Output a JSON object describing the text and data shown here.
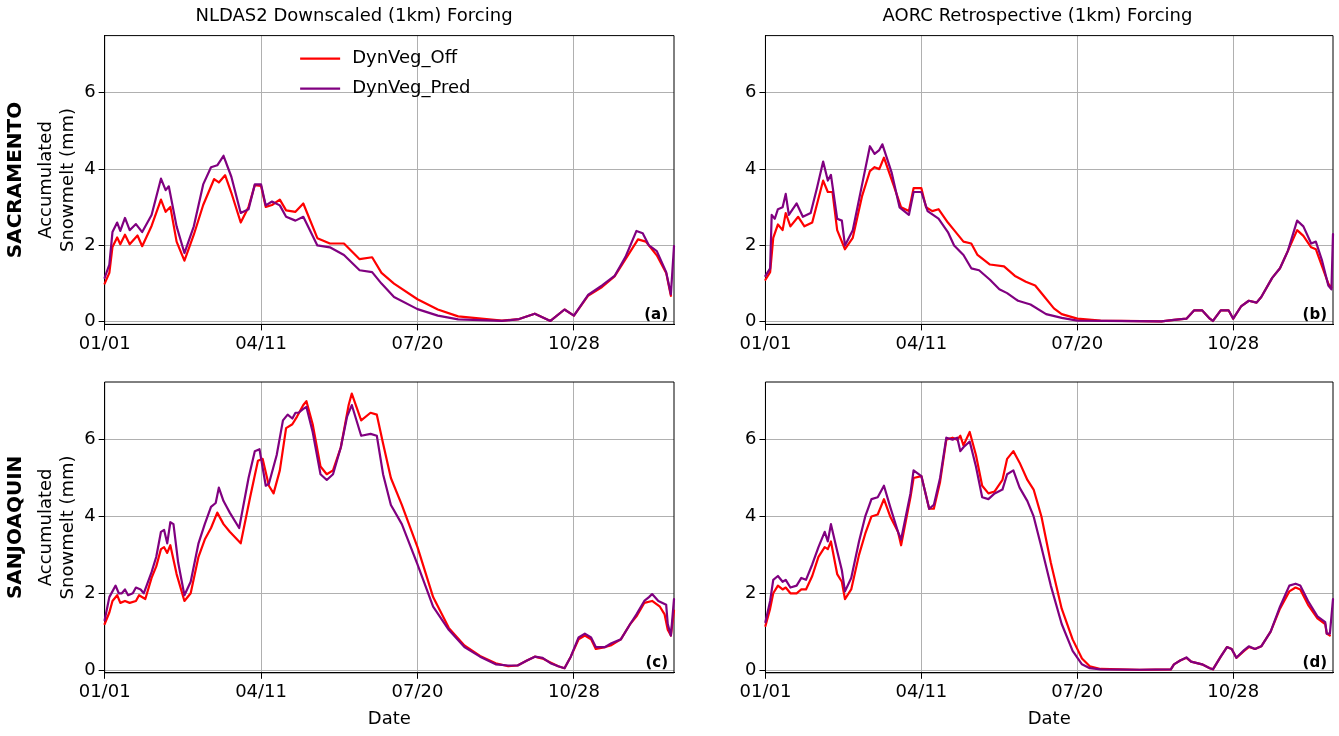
{
  "chart_data": [
    {
      "type": "line",
      "title": "NLDAS2 Downscaled (1km) Forcing",
      "ylabel": "Accumulated\nSnowmelt (mm)",
      "annotations": [
        "SACRAMENTO",
        "(a)"
      ],
      "legend": "top",
      "grid": true,
      "marker": "none",
      "line_style": "solid",
      "xlim": [
        "--01-01",
        "--12-31"
      ],
      "xticks": [
        {
          "value": "--01-01",
          "label": "01/01"
        },
        {
          "value": "--04-11",
          "label": "04/11"
        },
        {
          "value": "--07-20",
          "label": "07/20"
        },
        {
          "value": "--10-28",
          "label": "10/28"
        }
      ],
      "ylim": [
        -0.07,
        7.5
      ],
      "yticks": [
        0,
        2,
        4,
        6
      ],
      "series": [
        {
          "name": "DynVeg_Off",
          "color": "#ff0000",
          "x": [
            "--01-01",
            "--01-04",
            "--01-06",
            "--01-09",
            "--01-11",
            "--01-14",
            "--01-17",
            "--01-22",
            "--01-25",
            "--01-31",
            "--02-06",
            "--02-09",
            "--02-12",
            "--02-16",
            "--02-21",
            "--02-27",
            "--03-05",
            "--03-12",
            "--03-15",
            "--03-19",
            "--03-23",
            "--03-29",
            "--04-03",
            "--04-07",
            "--04-11",
            "--04-14",
            "--04-18",
            "--04-23",
            "--04-27",
            "--05-03",
            "--05-08",
            "--05-17",
            "--05-25",
            "--06-03",
            "--06-13",
            "--06-21",
            "--06-27",
            "--07-05",
            "--07-20",
            "--08-02",
            "--08-15",
            "--09-12",
            "--09-23",
            "--10-03",
            "--10-13",
            "--10-22",
            "--10-28",
            "--11-06",
            "--11-15",
            "--11-23",
            "--11-30",
            "--12-08",
            "--12-13",
            "--12-20",
            "--12-26",
            "--12-29"
          ],
          "values": [
            1.0,
            1.28,
            1.96,
            2.21,
            2.03,
            2.28,
            2.03,
            2.26,
            1.98,
            2.51,
            3.2,
            2.88,
            3.01,
            2.1,
            1.6,
            2.28,
            3.06,
            3.74,
            3.65,
            3.84,
            3.38,
            2.6,
            3.01,
            3.58,
            3.56,
            3.01,
            3.06,
            3.2,
            2.92,
            2.88,
            3.1,
            2.19,
            2.05,
            2.05,
            1.64,
            1.69,
            1.28,
            1.0,
            0.59,
            0.32,
            0.14,
            0.03,
            0.07,
            0.21,
            0.02,
            0.32,
            0.16,
            0.68,
            0.91,
            1.19,
            1.64,
            2.16,
            2.1,
            1.74,
            1.28,
            0.68
          ]
        },
        {
          "name": "DynVeg_Pred",
          "color": "#800080",
          "x": [
            "--01-01",
            "--01-04",
            "--01-06",
            "--01-09",
            "--01-11",
            "--01-14",
            "--01-17",
            "--01-21",
            "--01-25",
            "--01-31",
            "--02-06",
            "--02-09",
            "--02-11",
            "--02-16",
            "--02-21",
            "--02-27",
            "--03-05",
            "--03-10",
            "--03-14",
            "--03-18",
            "--03-23",
            "--03-29",
            "--04-03",
            "--04-07",
            "--04-11",
            "--04-14",
            "--04-18",
            "--04-23",
            "--04-27",
            "--05-03",
            "--05-08",
            "--05-17",
            "--05-25",
            "--06-03",
            "--06-13",
            "--06-21",
            "--06-27",
            "--07-05",
            "--07-20",
            "--08-02",
            "--08-15",
            "--09-12",
            "--09-23",
            "--10-03",
            "--10-13",
            "--10-22",
            "--10-28",
            "--11-06",
            "--11-15",
            "--11-23",
            "--11-30",
            "--12-07",
            "--12-11",
            "--12-15",
            "--12-20",
            "--12-26",
            "--12-29",
            "--12-31"
          ],
          "values": [
            1.15,
            1.5,
            2.35,
            2.6,
            2.38,
            2.72,
            2.4,
            2.56,
            2.35,
            2.8,
            3.75,
            3.45,
            3.55,
            2.5,
            1.8,
            2.5,
            3.6,
            4.05,
            4.1,
            4.35,
            3.8,
            2.85,
            2.95,
            3.6,
            3.6,
            3.05,
            3.15,
            3.05,
            2.75,
            2.65,
            2.75,
            2.0,
            1.95,
            1.75,
            1.35,
            1.3,
            1.0,
            0.65,
            0.33,
            0.16,
            0.06,
            0.02,
            0.07,
            0.21,
            0.02,
            0.32,
            0.16,
            0.7,
            0.95,
            1.2,
            1.7,
            2.38,
            2.32,
            2.0,
            1.85,
            1.3,
            0.72,
            1.98
          ]
        }
      ]
    },
    {
      "type": "line",
      "title": "AORC Retrospective (1km) Forcing",
      "annotations": [
        "(b)"
      ],
      "grid": true,
      "marker": "none",
      "line_style": "solid",
      "xlim": [
        "--01-01",
        "--12-31"
      ],
      "xticks": [
        {
          "value": "--01-01",
          "label": "01/01"
        },
        {
          "value": "--04-11",
          "label": "04/11"
        },
        {
          "value": "--07-20",
          "label": "07/20"
        },
        {
          "value": "--10-28",
          "label": "10/28"
        }
      ],
      "ylim": [
        -0.07,
        7.5
      ],
      "yticks": [
        0,
        2,
        4,
        6
      ],
      "series": [
        {
          "color": "#ff0000",
          "x": [
            "--01-01",
            "--01-04",
            "--01-06",
            "--01-09",
            "--01-12",
            "--01-14",
            "--01-17",
            "--01-22",
            "--01-26",
            "--01-31",
            "--02-07",
            "--02-10",
            "--02-13",
            "--02-16",
            "--02-21",
            "--02-26",
            "--03-04",
            "--03-09",
            "--03-12",
            "--03-15",
            "--03-18",
            "--03-24",
            "--03-29",
            "--04-03",
            "--04-06",
            "--04-11",
            "--04-14",
            "--04-18",
            "--04-22",
            "--04-28",
            "--05-02",
            "--05-08",
            "--05-13",
            "--05-17",
            "--05-25",
            "--06-03",
            "--06-10",
            "--06-17",
            "--06-23",
            "--06-28",
            "--07-05",
            "--07-10",
            "--07-20",
            "--08-04",
            "--09-12",
            "--09-20",
            "--09-28",
            "--10-03",
            "--10-08",
            "--10-13",
            "--10-15",
            "--10-20",
            "--10-25",
            "--10-28",
            "--11-02",
            "--11-07",
            "--11-12",
            "--11-15",
            "--11-22",
            "--11-27",
            "--12-02",
            "--12-08",
            "--12-12",
            "--12-17",
            "--12-20",
            "--12-24",
            "--12-28",
            "--12-30"
          ],
          "values": [
            1.1,
            1.3,
            2.2,
            2.55,
            2.4,
            2.85,
            2.5,
            2.75,
            2.5,
            2.6,
            3.7,
            3.4,
            3.4,
            2.4,
            1.9,
            2.2,
            3.3,
            3.95,
            4.05,
            4.0,
            4.3,
            3.6,
            3.0,
            2.9,
            3.5,
            3.5,
            3.0,
            2.9,
            2.95,
            2.6,
            2.4,
            2.1,
            2.05,
            1.75,
            1.5,
            1.45,
            1.2,
            1.05,
            0.95,
            0.7,
            0.35,
            0.2,
            0.08,
            0.03,
            0.01,
            0.05,
            0.08,
            0.3,
            0.3,
            0.08,
            0.02,
            0.3,
            0.3,
            0.08,
            0.4,
            0.55,
            0.5,
            0.65,
            1.15,
            1.4,
            1.85,
            2.4,
            2.25,
            1.95,
            1.9,
            1.45,
            1.0,
            0.9
          ]
        },
        {
          "color": "#800080",
          "x": [
            "--01-01",
            "--01-04",
            "--01-05",
            "--01-07",
            "--01-09",
            "--01-12",
            "--01-14",
            "--01-16",
            "--01-21",
            "--01-25",
            "--01-30",
            "--02-03",
            "--02-07",
            "--02-10",
            "--02-12",
            "--02-16",
            "--02-19",
            "--02-21",
            "--02-26",
            "--03-04",
            "--03-09",
            "--03-12",
            "--03-15",
            "--03-17",
            "--03-23",
            "--03-28",
            "--04-03",
            "--04-06",
            "--04-11",
            "--04-15",
            "--04-22",
            "--04-28",
            "--05-02",
            "--05-08",
            "--05-13",
            "--05-18",
            "--05-25",
            "--05-31",
            "--06-05",
            "--06-12",
            "--06-20",
            "--06-30",
            "--07-10",
            "--07-20",
            "--09-12",
            "--09-20",
            "--09-28",
            "--10-03",
            "--10-08",
            "--10-13",
            "--10-15",
            "--10-20",
            "--10-25",
            "--10-28",
            "--11-02",
            "--11-07",
            "--11-12",
            "--11-15",
            "--11-22",
            "--11-27",
            "--12-02",
            "--12-08",
            "--12-12",
            "--12-17",
            "--12-20",
            "--12-24",
            "--12-28",
            "--12-30",
            "--12-31"
          ],
          "values": [
            1.2,
            1.4,
            2.8,
            2.7,
            2.95,
            3.0,
            3.35,
            2.8,
            3.1,
            2.75,
            2.85,
            3.5,
            4.2,
            3.7,
            3.85,
            2.7,
            2.65,
            2.0,
            2.4,
            3.6,
            4.6,
            4.4,
            4.5,
            4.65,
            3.9,
            3.0,
            2.8,
            3.4,
            3.4,
            2.9,
            2.7,
            2.35,
            2.0,
            1.75,
            1.4,
            1.35,
            1.1,
            0.85,
            0.75,
            0.55,
            0.45,
            0.2,
            0.1,
            0.03,
            0.01,
            0.05,
            0.08,
            0.3,
            0.3,
            0.08,
            0.02,
            0.3,
            0.3,
            0.08,
            0.4,
            0.55,
            0.5,
            0.65,
            1.15,
            1.4,
            1.85,
            2.65,
            2.5,
            2.05,
            2.1,
            1.6,
            0.95,
            0.85,
            2.3
          ]
        }
      ]
    },
    {
      "type": "line",
      "xlabel": "Date",
      "ylabel": "Accumulated\nSnowmelt (mm)",
      "annotations": [
        "SANJOAQUIN",
        "(c)"
      ],
      "grid": true,
      "marker": "none",
      "line_style": "solid",
      "xlim": [
        "--01-01",
        "--12-31"
      ],
      "xticks": [
        {
          "value": "--01-01",
          "label": "01/01"
        },
        {
          "value": "--04-11",
          "label": "04/11"
        },
        {
          "value": "--07-20",
          "label": "07/20"
        },
        {
          "value": "--10-28",
          "label": "10/28"
        }
      ],
      "ylim": [
        -0.07,
        7.5
      ],
      "yticks": [
        0,
        2,
        4,
        6
      ],
      "series": [
        {
          "color": "#ff0000",
          "x": [
            "--01-01",
            "--01-04",
            "--01-06",
            "--01-09",
            "--01-11",
            "--01-14",
            "--01-17",
            "--01-21",
            "--01-23",
            "--01-27",
            "--01-31",
            "--02-03",
            "--02-06",
            "--02-08",
            "--02-10",
            "--02-12",
            "--02-16",
            "--02-21",
            "--02-25",
            "--03-02",
            "--03-06",
            "--03-10",
            "--03-14",
            "--03-18",
            "--03-22",
            "--03-29",
            "--04-04",
            "--04-09",
            "--04-12",
            "--04-16",
            "--04-19",
            "--04-23",
            "--04-27",
            "--05-01",
            "--05-04",
            "--05-08",
            "--05-10",
            "--05-14",
            "--05-19",
            "--05-23",
            "--05-27",
            "--06-01",
            "--06-06",
            "--06-08",
            "--06-14",
            "--06-20",
            "--06-24",
            "--06-28",
            "--07-03",
            "--07-10",
            "--07-20",
            "--07-30",
            "--08-09",
            "--08-19",
            "--08-29",
            "--09-08",
            "--09-16",
            "--09-22",
            "--09-28",
            "--10-03",
            "--10-08",
            "--10-13",
            "--10-18",
            "--10-22",
            "--10-26",
            "--10-31",
            "--11-04",
            "--11-08",
            "--11-11",
            "--11-17",
            "--11-21",
            "--11-27",
            "--12-03",
            "--12-07",
            "--12-12",
            "--12-17",
            "--12-22",
            "--12-25",
            "--12-27",
            "--12-29",
            "--12-31"
          ],
          "values": [
            1.2,
            1.5,
            1.8,
            1.95,
            1.75,
            1.8,
            1.75,
            1.8,
            1.95,
            1.85,
            2.4,
            2.7,
            3.15,
            3.2,
            3.05,
            3.25,
            2.5,
            1.8,
            2.0,
            2.95,
            3.4,
            3.7,
            4.1,
            3.8,
            3.6,
            3.3,
            4.5,
            5.45,
            5.5,
            4.8,
            4.6,
            5.2,
            6.3,
            6.4,
            6.6,
            6.9,
            7.0,
            6.4,
            5.3,
            5.1,
            5.2,
            5.8,
            6.9,
            7.2,
            6.5,
            6.7,
            6.65,
            5.9,
            5.0,
            4.3,
            3.2,
            1.9,
            1.1,
            0.64,
            0.37,
            0.18,
            0.1,
            0.12,
            0.25,
            0.35,
            0.3,
            0.2,
            0.1,
            0.05,
            0.35,
            0.8,
            0.9,
            0.8,
            0.55,
            0.6,
            0.65,
            0.8,
            1.2,
            1.4,
            1.75,
            1.8,
            1.65,
            1.45,
            1.05,
            0.9,
            1.55
          ]
        },
        {
          "color": "#800080",
          "x": [
            "--01-01",
            "--01-04",
            "--01-06",
            "--01-08",
            "--01-10",
            "--01-12",
            "--01-14",
            "--01-16",
            "--01-19",
            "--01-21",
            "--01-24",
            "--01-26",
            "--01-31",
            "--02-03",
            "--02-06",
            "--02-08",
            "--02-10",
            "--02-12",
            "--02-14",
            "--02-17",
            "--02-21",
            "--02-25",
            "--03-02",
            "--03-06",
            "--03-10",
            "--03-13",
            "--03-15",
            "--03-18",
            "--03-22",
            "--03-28",
            "--04-03",
            "--04-07",
            "--04-10",
            "--04-14",
            "--04-16",
            "--04-21",
            "--04-25",
            "--04-28",
            "--05-01",
            "--05-03",
            "--05-05",
            "--05-08",
            "--05-10",
            "--05-14",
            "--05-19",
            "--05-23",
            "--05-27",
            "--06-01",
            "--06-05",
            "--06-08",
            "--06-14",
            "--06-20",
            "--06-24",
            "--06-28",
            "--07-03",
            "--07-10",
            "--07-20",
            "--07-30",
            "--08-09",
            "--08-19",
            "--08-29",
            "--09-08",
            "--09-16",
            "--09-22",
            "--09-28",
            "--10-03",
            "--10-08",
            "--10-13",
            "--10-18",
            "--10-22",
            "--10-26",
            "--10-31",
            "--11-04",
            "--11-08",
            "--11-11",
            "--11-17",
            "--11-21",
            "--11-27",
            "--12-03",
            "--12-07",
            "--12-12",
            "--12-15",
            "--12-17",
            "--12-21",
            "--12-26",
            "--12-27",
            "--12-29",
            "--12-31"
          ],
          "values": [
            1.3,
            1.9,
            2.05,
            2.2,
            2.0,
            2.0,
            2.1,
            1.95,
            2.0,
            2.15,
            2.1,
            2.0,
            2.55,
            2.95,
            3.6,
            3.65,
            3.3,
            3.85,
            3.8,
            2.8,
            1.95,
            2.3,
            3.3,
            3.8,
            4.25,
            4.35,
            4.75,
            4.4,
            4.1,
            3.7,
            5.0,
            5.7,
            5.75,
            4.8,
            4.85,
            5.6,
            6.5,
            6.65,
            6.55,
            6.7,
            6.7,
            6.8,
            6.85,
            6.2,
            5.1,
            4.95,
            5.1,
            5.8,
            6.6,
            6.9,
            6.1,
            6.15,
            6.1,
            5.1,
            4.3,
            3.8,
            2.75,
            1.65,
            1.05,
            0.6,
            0.35,
            0.15,
            0.12,
            0.12,
            0.25,
            0.35,
            0.32,
            0.18,
            0.1,
            0.05,
            0.35,
            0.85,
            0.95,
            0.85,
            0.6,
            0.6,
            0.7,
            0.8,
            1.2,
            1.45,
            1.8,
            1.9,
            1.98,
            1.8,
            1.7,
            1.2,
            0.9,
            1.85
          ]
        }
      ]
    },
    {
      "type": "line",
      "xlabel": "Date",
      "annotations": [
        "(d)"
      ],
      "grid": true,
      "marker": "none",
      "line_style": "solid",
      "xlim": [
        "--01-01",
        "--12-31"
      ],
      "xticks": [
        {
          "value": "--01-01",
          "label": "01/01"
        },
        {
          "value": "--04-11",
          "label": "04/11"
        },
        {
          "value": "--07-20",
          "label": "07/20"
        },
        {
          "value": "--10-28",
          "label": "10/28"
        }
      ],
      "ylim": [
        -0.07,
        7.5
      ],
      "yticks": [
        0,
        2,
        4,
        6
      ],
      "x": [
        "--01-01",
        "--01-04",
        "--01-06",
        "--01-09",
        "--01-12",
        "--01-14",
        "--01-17",
        "--01-21",
        "--01-24",
        "--01-27",
        "--01-31",
        "--02-04",
        "--02-08",
        "--02-10",
        "--02-12",
        "--02-16",
        "--02-19",
        "--02-21",
        "--02-25",
        "--03-02",
        "--03-06",
        "--03-10",
        "--03-14",
        "--03-18",
        "--03-22",
        "--03-27",
        "--03-29",
        "--04-04",
        "--04-06",
        "--04-11",
        "--04-16",
        "--04-19",
        "--04-23",
        "--04-27",
        "--05-01",
        "--05-04",
        "--05-06",
        "--05-08",
        "--05-12",
        "--05-16",
        "--05-20",
        "--05-24",
        "--05-28",
        "--06-02",
        "--06-05",
        "--06-09",
        "--06-13",
        "--06-18",
        "--06-22",
        "--06-27",
        "--07-03",
        "--07-10",
        "--07-17",
        "--07-23",
        "--07-28",
        "--08-04",
        "--08-29",
        "--09-18",
        "--09-20",
        "--09-24",
        "--09-28",
        "--10-01",
        "--10-08",
        "--10-13",
        "--10-15",
        "--10-20",
        "--10-24",
        "--10-27",
        "--10-30",
        "--11-04",
        "--11-07",
        "--11-11",
        "--11-15",
        "--11-21",
        "--11-27",
        "--12-03",
        "--12-07",
        "--12-10",
        "--12-15",
        "--12-21",
        "--12-26",
        "--12-27",
        "--12-29",
        "--12-31"
      ],
      "series": [
        {
          "color": "#ff0000",
          "values": [
            1.15,
            1.6,
            2.0,
            2.2,
            2.1,
            2.15,
            2.0,
            2.0,
            2.1,
            2.1,
            2.45,
            2.95,
            3.2,
            3.15,
            3.35,
            2.5,
            2.3,
            1.85,
            2.1,
            3.0,
            3.55,
            4.0,
            4.05,
            4.45,
            4.0,
            3.6,
            3.25,
            4.5,
            5.0,
            5.05,
            4.2,
            4.2,
            4.9,
            6.0,
            6.05,
            6.0,
            6.1,
            5.85,
            6.2,
            5.6,
            4.8,
            4.6,
            4.65,
            4.95,
            5.5,
            5.7,
            5.4,
            4.95,
            4.7,
            4.0,
            2.8,
            1.6,
            0.8,
            0.3,
            0.1,
            0.03,
            0.01,
            0.02,
            0.15,
            0.25,
            0.32,
            0.22,
            0.15,
            0.05,
            0.02,
            0.35,
            0.6,
            0.55,
            0.32,
            0.5,
            0.6,
            0.55,
            0.62,
            1.0,
            1.6,
            2.05,
            2.15,
            2.1,
            1.7,
            1.35,
            1.2,
            0.95,
            0.9,
            null
          ]
        },
        {
          "color": "#800080",
          "values": [
            1.25,
            1.8,
            2.35,
            2.45,
            2.3,
            2.35,
            2.15,
            2.2,
            2.4,
            2.35,
            2.75,
            3.2,
            3.6,
            3.35,
            3.8,
            3.1,
            2.6,
            2.05,
            2.4,
            3.35,
            4.0,
            4.45,
            4.5,
            4.8,
            4.25,
            3.6,
            3.4,
            4.6,
            5.2,
            5.05,
            4.2,
            4.3,
            5.0,
            6.05,
            6.0,
            6.05,
            5.7,
            5.8,
            5.95,
            5.3,
            4.5,
            4.45,
            4.6,
            4.7,
            5.1,
            5.2,
            4.75,
            4.4,
            4.0,
            3.2,
            2.2,
            1.2,
            0.5,
            0.15,
            0.05,
            0.02,
            0.01,
            0.02,
            0.15,
            0.25,
            0.33,
            0.22,
            0.15,
            0.05,
            0.02,
            0.35,
            0.6,
            0.55,
            0.32,
            0.52,
            0.62,
            0.55,
            0.62,
            1.0,
            1.65,
            2.2,
            2.25,
            2.2,
            1.8,
            1.4,
            1.25,
            0.95,
            0.95,
            1.85
          ]
        }
      ]
    }
  ]
}
